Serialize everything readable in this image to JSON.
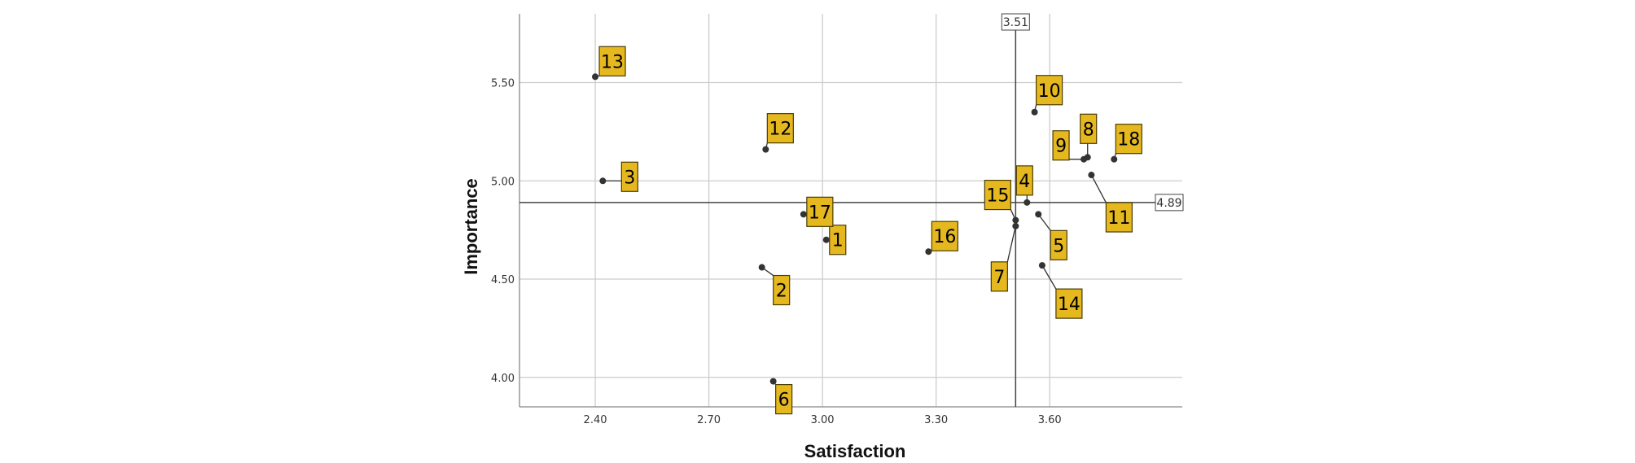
{
  "chart_data": {
    "type": "scatter",
    "title": "",
    "xlabel": "Satisfaction",
    "ylabel": "Importance",
    "xlim": [
      2.2,
      3.95
    ],
    "ylim": [
      3.85,
      5.85
    ],
    "x_ticks": [
      2.4,
      2.7,
      3.0,
      3.3,
      3.6
    ],
    "y_ticks": [
      4.0,
      4.5,
      5.0,
      5.5
    ],
    "x_tick_labels": [
      "2.40",
      "2.70",
      "3.00",
      "3.30",
      "3.60"
    ],
    "y_tick_labels": [
      "4.00",
      "4.50",
      "5.00",
      "5.50"
    ],
    "grid": true,
    "reference_lines": {
      "x": {
        "value": 3.51,
        "label": "3.51"
      },
      "y": {
        "value": 4.89,
        "label": "4.89"
      }
    },
    "points": [
      {
        "label": "1",
        "x": 3.01,
        "y": 4.7
      },
      {
        "label": "2",
        "x": 2.84,
        "y": 4.56
      },
      {
        "label": "3",
        "x": 2.42,
        "y": 5.0
      },
      {
        "label": "4",
        "x": 3.54,
        "y": 4.89
      },
      {
        "label": "5",
        "x": 3.57,
        "y": 4.83
      },
      {
        "label": "6",
        "x": 2.87,
        "y": 3.98
      },
      {
        "label": "7",
        "x": 3.51,
        "y": 4.77
      },
      {
        "label": "8",
        "x": 3.7,
        "y": 5.12
      },
      {
        "label": "9",
        "x": 3.69,
        "y": 5.11
      },
      {
        "label": "10",
        "x": 3.56,
        "y": 5.35
      },
      {
        "label": "11",
        "x": 3.71,
        "y": 5.03
      },
      {
        "label": "12",
        "x": 2.85,
        "y": 5.16
      },
      {
        "label": "13",
        "x": 2.4,
        "y": 5.53
      },
      {
        "label": "14",
        "x": 3.58,
        "y": 4.57
      },
      {
        "label": "15",
        "x": 3.51,
        "y": 4.8
      },
      {
        "label": "16",
        "x": 3.28,
        "y": 4.64
      },
      {
        "label": "17",
        "x": 2.95,
        "y": 4.83
      },
      {
        "label": "18",
        "x": 3.77,
        "y": 5.11
      }
    ],
    "colors": {
      "point": "#333333",
      "label_fill": "#e6b820",
      "label_border": "#4a3c00",
      "grid": "#cccccc",
      "axis": "#888888",
      "reference_line": "#444444"
    }
  }
}
